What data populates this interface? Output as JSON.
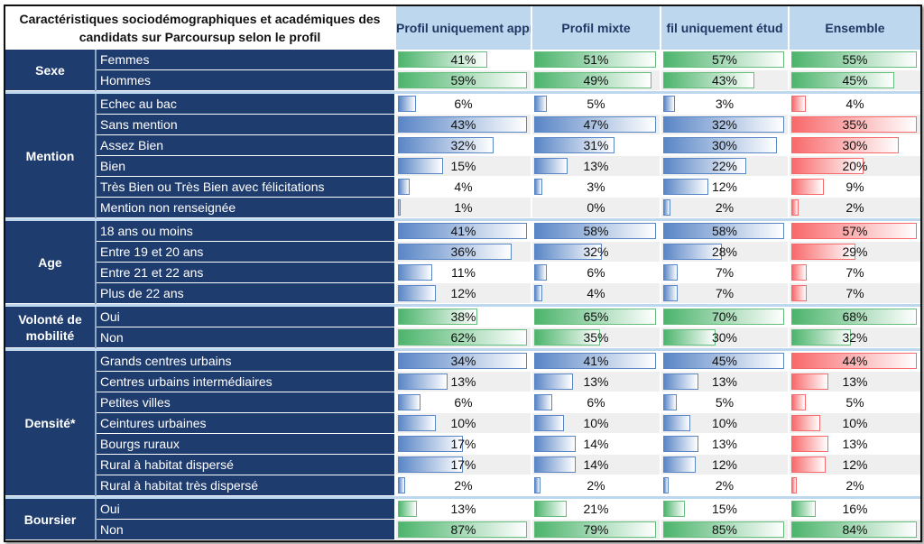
{
  "header": {
    "title": "Caractéristiques sociodémographiques et académiques des candidats sur Parcoursup selon le profil",
    "columns": [
      "Profil uniquement apprentissage",
      "Profil mixte",
      "fil uniquement étud",
      "Ensemble"
    ]
  },
  "colors": {
    "green": "#63be7b",
    "blue": "#5a86c6",
    "red": "#f8696b",
    "navy": "#1f3c6e",
    "header": "#bdd7ee"
  },
  "groups": [
    {
      "name": "Sexe",
      "bar": "green",
      "rows": [
        {
          "label": "Femmes",
          "values": [
            41,
            51,
            57,
            55
          ]
        },
        {
          "label": "Hommes",
          "values": [
            59,
            49,
            43,
            45
          ]
        }
      ]
    },
    {
      "name": "Mention",
      "bar": "blue",
      "rows": [
        {
          "label": "Echec au bac",
          "values": [
            6,
            5,
            3,
            4
          ]
        },
        {
          "label": "Sans mention",
          "values": [
            43,
            47,
            32,
            35
          ]
        },
        {
          "label": "Assez Bien",
          "values": [
            32,
            31,
            30,
            30
          ]
        },
        {
          "label": "Bien",
          "values": [
            15,
            13,
            22,
            20
          ]
        },
        {
          "label": "Très Bien ou Très Bien avec félicitations",
          "values": [
            4,
            3,
            12,
            9
          ]
        },
        {
          "label": "Mention non renseignée",
          "values": [
            1,
            0,
            2,
            2
          ]
        }
      ]
    },
    {
      "name": "Age",
      "bar": "blue",
      "rows": [
        {
          "label": "18 ans ou moins",
          "values": [
            41,
            58,
            58,
            57
          ]
        },
        {
          "label": "Entre 19 et 20 ans",
          "values": [
            36,
            32,
            28,
            29
          ]
        },
        {
          "label": "Entre 21 et 22 ans",
          "values": [
            11,
            6,
            7,
            7
          ]
        },
        {
          "label": "Plus de 22 ans",
          "values": [
            12,
            4,
            7,
            7
          ]
        }
      ]
    },
    {
      "name": "Volonté de mobilité",
      "bar": "green",
      "rows": [
        {
          "label": "Oui",
          "values": [
            38,
            65,
            70,
            68
          ]
        },
        {
          "label": "Non",
          "values": [
            62,
            35,
            30,
            32
          ]
        }
      ]
    },
    {
      "name": "Densité*",
      "bar": "blue",
      "rows": [
        {
          "label": "Grands centres urbains",
          "values": [
            34,
            41,
            45,
            44
          ]
        },
        {
          "label": "Centres urbains intermédiaires",
          "values": [
            13,
            13,
            13,
            13
          ]
        },
        {
          "label": "Petites villes",
          "values": [
            6,
            6,
            5,
            5
          ]
        },
        {
          "label": "Ceintures urbaines",
          "values": [
            10,
            10,
            10,
            10
          ]
        },
        {
          "label": "Bourgs ruraux",
          "values": [
            17,
            14,
            13,
            13
          ]
        },
        {
          "label": "Rural à habitat dispersé",
          "values": [
            17,
            14,
            12,
            12
          ]
        },
        {
          "label": "Rural à habitat très dispersé",
          "values": [
            2,
            2,
            2,
            2
          ]
        }
      ]
    },
    {
      "name": "Boursier",
      "bar": "green",
      "rows": [
        {
          "label": "Oui",
          "values": [
            13,
            21,
            15,
            16
          ]
        },
        {
          "label": "Non",
          "values": [
            87,
            79,
            85,
            84
          ]
        }
      ]
    }
  ]
}
